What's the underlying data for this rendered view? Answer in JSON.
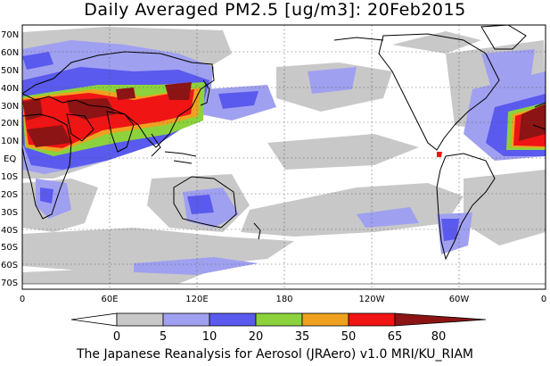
{
  "title": "Daily Averaged PM2.5 [ug/m3]: 20Feb2015",
  "credit": "The Japanese Reanalysis for Aerosol (JRAero) v1.0 MRI/KU_RIAM",
  "lat_labels": [
    "70N",
    "60N",
    "50N",
    "40N",
    "30N",
    "20N",
    "10N",
    "EQ",
    "10S",
    "20S",
    "30S",
    "40S",
    "50S",
    "60S",
    "70S"
  ],
  "lon_labels": [
    "0",
    "60E",
    "120E",
    "180",
    "120W",
    "60W",
    "0"
  ],
  "colorbar": {
    "ticks": [
      "0",
      "5",
      "10",
      "20",
      "35",
      "50",
      "65",
      "80"
    ],
    "colors": [
      "#ffffff",
      "#c8c8c8",
      "#a0a0f0",
      "#5a5aee",
      "#8cd23c",
      "#f0a020",
      "#f01414",
      "#8c1414"
    ]
  },
  "colors": {
    "ocean": "#ffffff",
    "coast": "#000000"
  }
}
